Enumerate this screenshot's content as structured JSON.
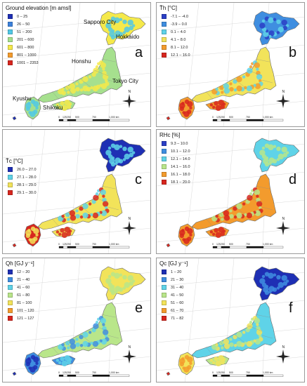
{
  "panels": [
    {
      "letter": "a",
      "legend_title": "Ground elevation [m amsl]",
      "classes": [
        {
          "label": "0 – 25",
          "color": "#1e2fb4"
        },
        {
          "label": "26 – 50",
          "color": "#3c82dc"
        },
        {
          "label": "51 – 200",
          "color": "#50c8e6"
        },
        {
          "label": "201 – 600",
          "color": "#a6e08e"
        },
        {
          "label": "601 – 800",
          "color": "#f5e94a"
        },
        {
          "label": "801 – 1000",
          "color": "#f39b2d"
        },
        {
          "label": "1001 – 2353",
          "color": "#d7261e"
        }
      ],
      "place_labels": {
        "sapporo": "Sapporo City",
        "hokkaido": "Hokkaido",
        "honshu": "Honshu",
        "tokyo": "Tokyo City",
        "kyushu": "Kyushu",
        "shikoku": "Shikoku"
      }
    },
    {
      "letter": "b",
      "legend_title": "T̄h  [°C]",
      "classes": [
        {
          "label": "-7.1 – -4.0",
          "color": "#2b3fc6"
        },
        {
          "label": "-3.9 – 0.0",
          "color": "#3f8ee0"
        },
        {
          "label": "0.1 – 4.0",
          "color": "#5fd3e8"
        },
        {
          "label": "4.1 – 8.0",
          "color": "#f2e35a"
        },
        {
          "label": "8.1 – 12.0",
          "color": "#f39b2d"
        },
        {
          "label": "12.1 – 16.0",
          "color": "#d7261e"
        }
      ]
    },
    {
      "letter": "c",
      "legend_title": "T̄c  [°C]",
      "classes": [
        {
          "label": "26.0 – 27.0",
          "color": "#1e2fb4"
        },
        {
          "label": "27.1 – 28.0",
          "color": "#5fd3e8"
        },
        {
          "label": "28.1 – 29.0",
          "color": "#f2e35a"
        },
        {
          "label": "29.1 – 30.0",
          "color": "#d7261e"
        }
      ]
    },
    {
      "letter": "d",
      "legend_title": "RHc [%]",
      "classes": [
        {
          "label": "9.3 – 10.0",
          "color": "#2b3fc6"
        },
        {
          "label": "10.1 – 12.0",
          "color": "#3f8ee0"
        },
        {
          "label": "12.1 – 14.0",
          "color": "#5fd3e8"
        },
        {
          "label": "14.1 – 16.0",
          "color": "#b9e68a"
        },
        {
          "label": "16.1 – 18.0",
          "color": "#f39b2d"
        },
        {
          "label": "18.1 – 20.0",
          "color": "#d7261e"
        }
      ]
    },
    {
      "letter": "e",
      "legend_title": "Qh [GJ y⁻¹]",
      "classes": [
        {
          "label": "12 – 20",
          "color": "#1e2fb4"
        },
        {
          "label": "21 – 40",
          "color": "#3f8ee0"
        },
        {
          "label": "41 – 60",
          "color": "#5fd3e8"
        },
        {
          "label": "61 – 80",
          "color": "#b9e68a"
        },
        {
          "label": "81 – 100",
          "color": "#f2e35a"
        },
        {
          "label": "101 – 120",
          "color": "#f39b2d"
        },
        {
          "label": "121 – 127",
          "color": "#d7261e"
        }
      ]
    },
    {
      "letter": "f",
      "legend_title": "Qc [GJ y⁻¹]",
      "classes": [
        {
          "label": "1 – 20",
          "color": "#1e2fb4"
        },
        {
          "label": "21 – 30",
          "color": "#3f8ee0"
        },
        {
          "label": "31 – 40",
          "color": "#5fd3e8"
        },
        {
          "label": "41 – 50",
          "color": "#b9e68a"
        },
        {
          "label": "51 – 60",
          "color": "#f2e35a"
        },
        {
          "label": "61 – 70",
          "color": "#f39b2d"
        },
        {
          "label": "71 – 82",
          "color": "#d7261e"
        }
      ]
    }
  ],
  "compass_label": "N",
  "scale_labels": [
    "0",
    "125",
    "250",
    "500",
    "750",
    "1,000 km"
  ]
}
